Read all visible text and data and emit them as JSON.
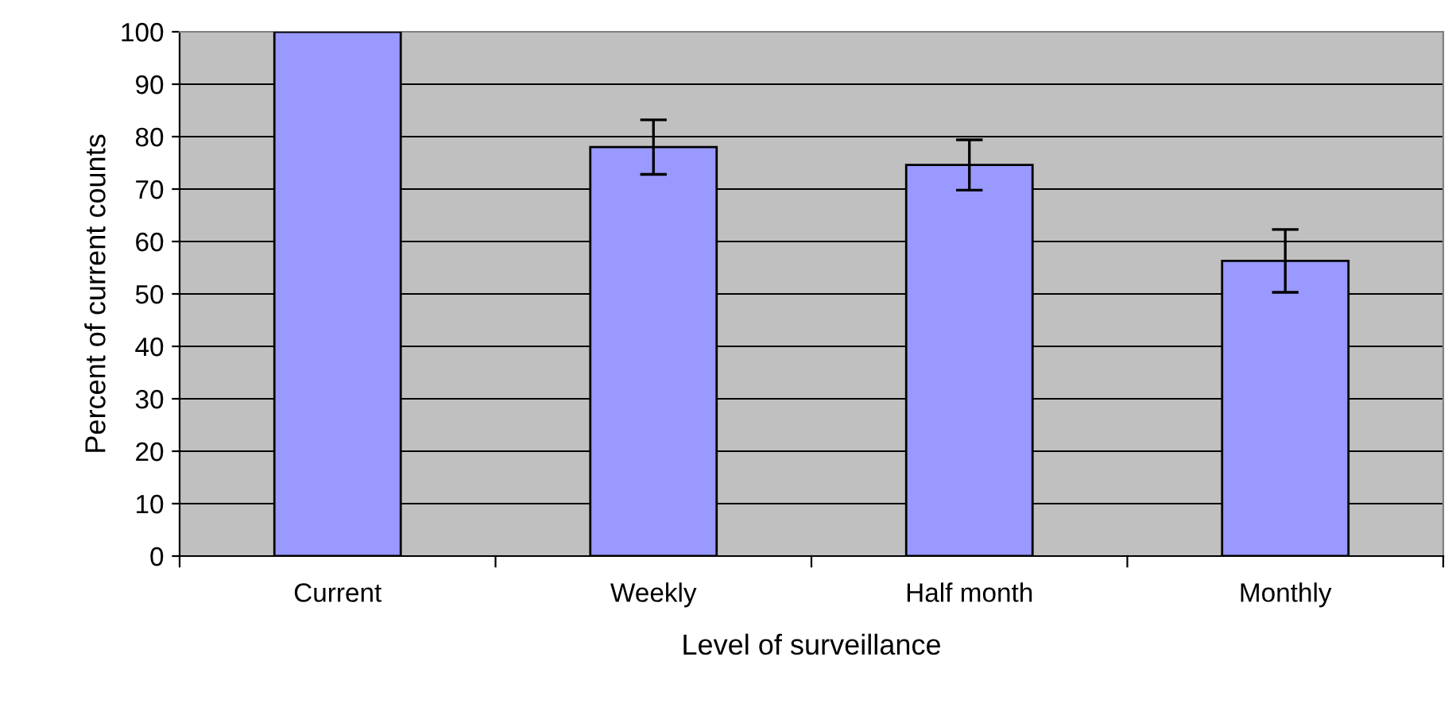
{
  "chart_data": {
    "type": "bar",
    "xlabel": "Level of surveillance",
    "ylabel": "Percent of current counts",
    "categories": [
      "Current",
      "Weekly",
      "Half month",
      "Monthly"
    ],
    "values": [
      100,
      78,
      74.6,
      56.3
    ],
    "errors": [
      null,
      5.2,
      4.8,
      6
    ],
    "color": "#9999ff",
    "ylim": [
      0,
      100
    ],
    "yticks": [
      0,
      10,
      20,
      30,
      40,
      50,
      60,
      70,
      80,
      90,
      100
    ],
    "grid": "y",
    "legend": false
  }
}
